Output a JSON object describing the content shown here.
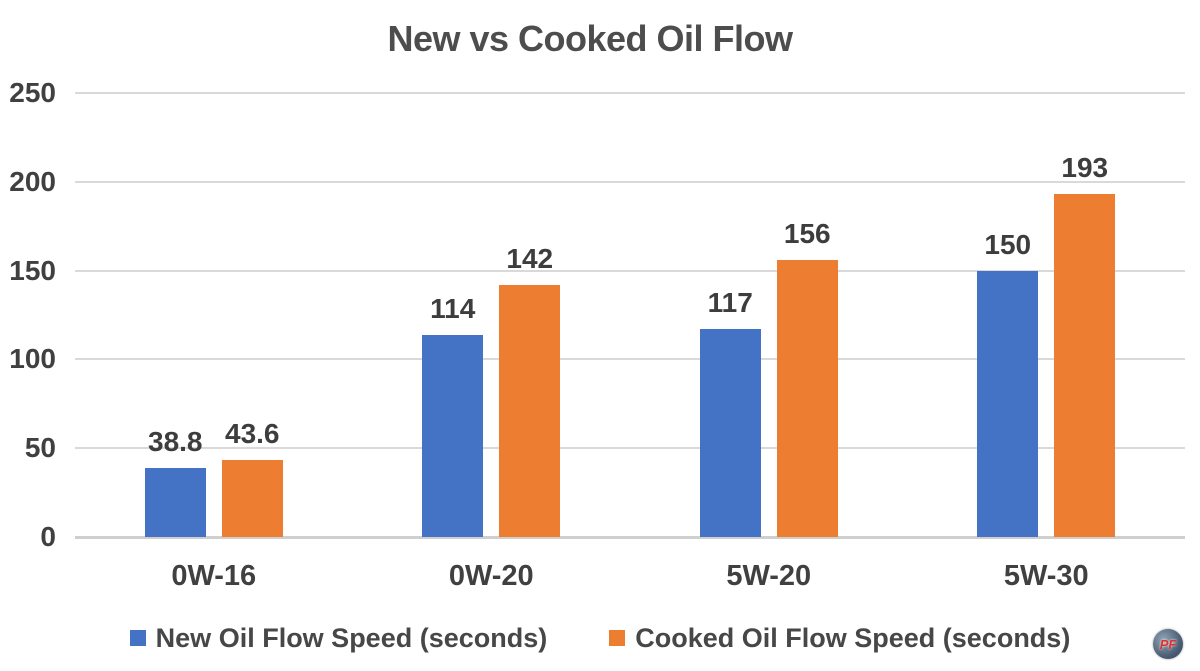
{
  "title": "New vs Cooked Oil Flow",
  "chart_data": {
    "type": "bar",
    "categories": [
      "0W-16",
      "0W-20",
      "5W-20",
      "5W-30"
    ],
    "series": [
      {
        "name": "New Oil Flow Speed (seconds)",
        "color": "#4472C4",
        "values": [
          38.8,
          114,
          117,
          150
        ]
      },
      {
        "name": "Cooked Oil Flow Speed (seconds)",
        "color": "#ED7D31",
        "values": [
          43.6,
          142,
          156,
          193
        ]
      }
    ],
    "title": "New vs Cooked Oil Flow",
    "xlabel": "",
    "ylabel": "",
    "ylim": [
      0,
      250
    ],
    "yticks": [
      0,
      50,
      100,
      150,
      200,
      250
    ],
    "grid": true,
    "legend_position": "bottom",
    "data_labels": true
  },
  "watermark": {
    "text": "PF"
  }
}
